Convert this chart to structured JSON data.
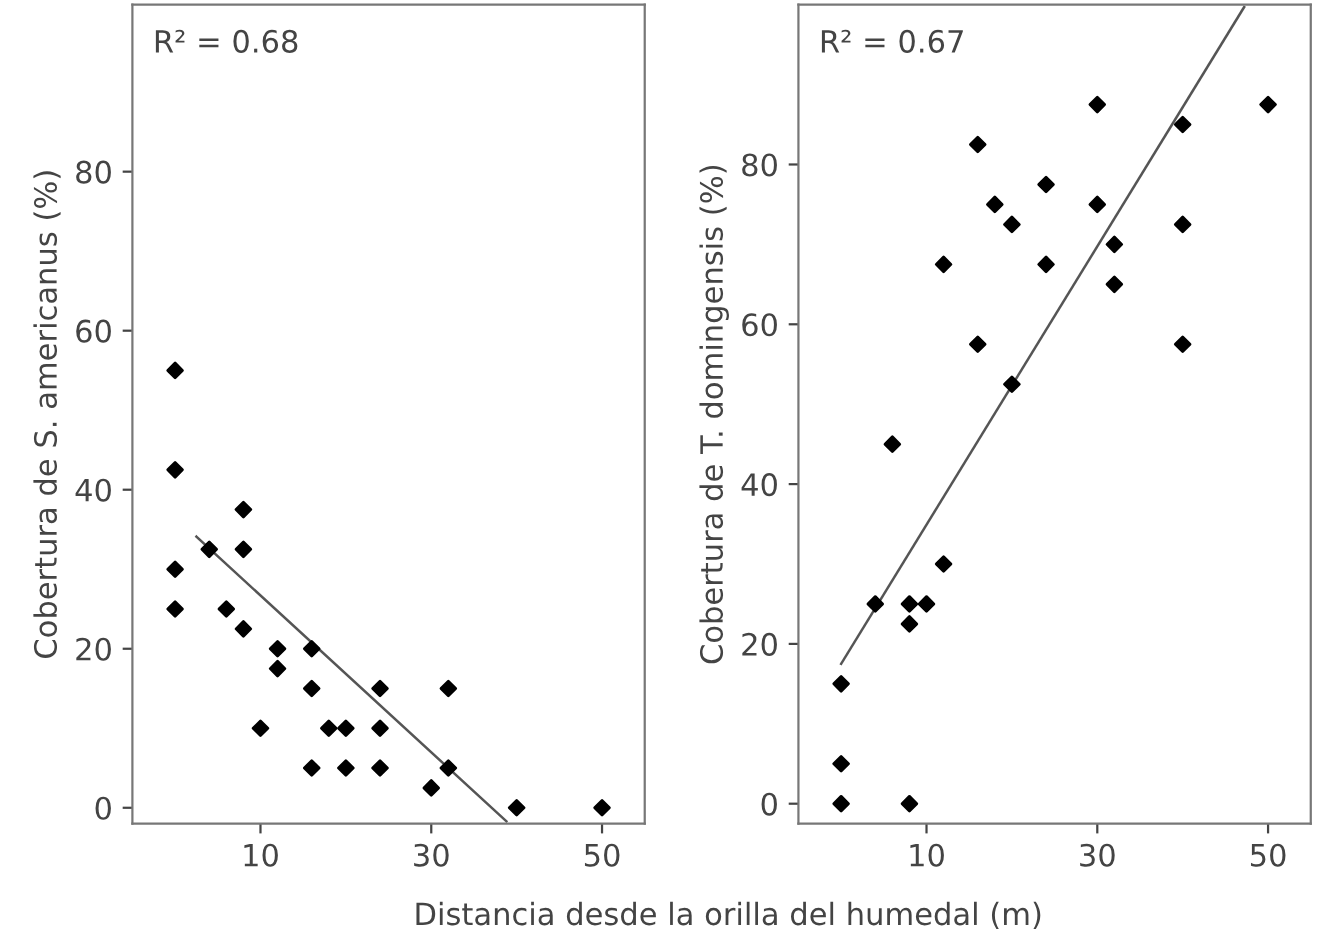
{
  "chart_data": [
    {
      "type": "scatter",
      "xlabel": "Distancia desde la orilla del humedal (m)",
      "ylabel": "Cobertura de S. americanus (%)",
      "annotations": [
        "R² = 0.68"
      ],
      "xlim": [
        -5,
        55
      ],
      "ylim": [
        -2,
        101
      ],
      "xticks": [
        10,
        30,
        50
      ],
      "yticks": [
        0,
        20,
        40,
        60,
        80
      ],
      "grid": false,
      "legend": false,
      "series": [
        {
          "marker": "diamond",
          "color": "#000000",
          "x": [
            0,
            0,
            0,
            0,
            4,
            8,
            8,
            6,
            8,
            12,
            12,
            10,
            16,
            16,
            16,
            18,
            20,
            20,
            24,
            24,
            24,
            30,
            32,
            32,
            40,
            50
          ],
          "values": [
            55,
            42.5,
            30,
            25,
            32.5,
            37.5,
            32.5,
            25,
            22.5,
            20,
            17.5,
            10,
            20,
            15,
            5,
            10,
            10,
            5,
            15,
            10,
            5,
            2.5,
            15,
            5,
            0,
            0
          ]
        },
        {
          "type": "line",
          "color": "#555555",
          "x": [
            2.5,
            38.8
          ],
          "values": [
            34.1,
            -1.7
          ]
        }
      ]
    },
    {
      "type": "scatter",
      "ylabel": "Cobertura de T. domingensis (%)",
      "annotations": [
        "R² = 0.67"
      ],
      "xlim": [
        -5,
        55
      ],
      "ylim": [
        -2.5,
        100
      ],
      "xticks": [
        10,
        30,
        50
      ],
      "yticks": [
        0,
        20,
        40,
        60,
        80
      ],
      "grid": false,
      "legend": false,
      "series": [
        {
          "marker": "diamond",
          "color": "#000000",
          "x": [
            0,
            0,
            0,
            4,
            8,
            10,
            8,
            12,
            6,
            8,
            12,
            16,
            16,
            18,
            20,
            20,
            24,
            24,
            30,
            30,
            32,
            32,
            40,
            40,
            40,
            50
          ],
          "values": [
            0,
            5,
            15,
            25,
            25,
            25,
            22.5,
            30,
            45,
            0,
            67.5,
            82.5,
            57.5,
            75,
            72.5,
            52.5,
            77.5,
            67.5,
            87.5,
            75,
            70,
            65,
            85,
            72.5,
            57.5,
            87.5
          ]
        },
        {
          "type": "line",
          "color": "#555555",
          "x": [
            0,
            47.2
          ],
          "values": [
            17.5,
            99.7
          ]
        }
      ]
    }
  ]
}
